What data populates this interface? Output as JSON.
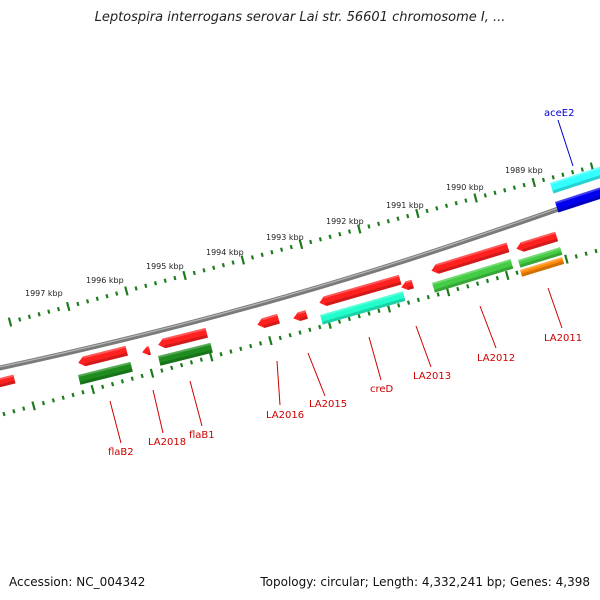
{
  "title": "Leptospira interrogans serovar Lai str. 56601 chromosome I, ...",
  "footer": {
    "accession": "Accession: NC_004342",
    "topology": "Topology: circular; Length: 4,332,241 bp; Genes: 4,398"
  },
  "colors": {
    "backbone": "#7a7a7a",
    "tick": "#1e7b1e",
    "gene_label": "#cc0000",
    "blue_label": "#0000cc",
    "red": "#ff2020",
    "dark_green": "#1e8c1e",
    "light_green": "#44cc44",
    "cyan": "#22ffcc",
    "light_cyan": "#33ffff",
    "blue": "#0000ee",
    "orange": "#ff8800"
  },
  "kbp_labels": [
    "1989 kbp",
    "1990 kbp",
    "1991 kbp",
    "1992 kbp",
    "1993 kbp",
    "1994 kbp",
    "1995 kbp",
    "1996 kbp",
    "1997 kbp"
  ],
  "gene_labels": [
    {
      "text": "aceE2",
      "color": "blue"
    },
    {
      "text": "LA2011",
      "color": "red"
    },
    {
      "text": "LA2012",
      "color": "red"
    },
    {
      "text": "LA2013",
      "color": "red"
    },
    {
      "text": "creD",
      "color": "red"
    },
    {
      "text": "LA2015",
      "color": "red"
    },
    {
      "text": "LA2016",
      "color": "red"
    },
    {
      "text": "flaB1",
      "color": "red"
    },
    {
      "text": "LA2018",
      "color": "red"
    },
    {
      "text": "flaB2",
      "color": "red"
    }
  ]
}
